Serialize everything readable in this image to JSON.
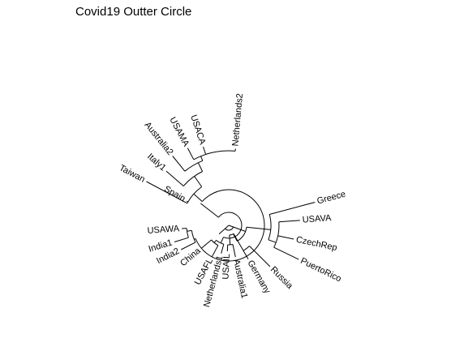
{
  "title": "Covid19 Outter Circle",
  "tree": {
    "layout": "fan",
    "line_color": "#000000",
    "leaves": [
      {
        "label": "Greece"
      },
      {
        "label": "USAVA"
      },
      {
        "label": "CzechRep"
      },
      {
        "label": "PuertoRico"
      },
      {
        "label": "Russia"
      },
      {
        "label": "Germany"
      },
      {
        "label": "Australia1"
      },
      {
        "label": "USAIL"
      },
      {
        "label": "Netherlands1"
      },
      {
        "label": "USAFL"
      },
      {
        "label": "China"
      },
      {
        "label": "India2"
      },
      {
        "label": "India1"
      },
      {
        "label": "USAWA"
      },
      {
        "label": "Spain"
      },
      {
        "label": "Taiwan"
      },
      {
        "label": "Italy1"
      },
      {
        "label": "Australia2"
      },
      {
        "label": "USAMA"
      },
      {
        "label": "USACA"
      },
      {
        "label": "Netherlands2"
      }
    ]
  }
}
